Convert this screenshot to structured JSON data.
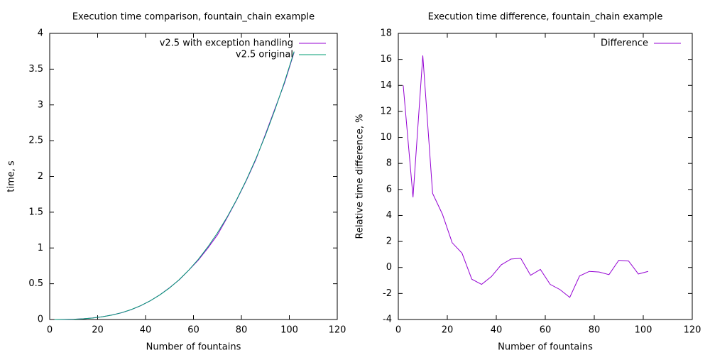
{
  "chart_data": [
    {
      "type": "line",
      "title": "Execution time comparison, fountain_chain example",
      "xlabel": "Number of fountains",
      "ylabel": "time, s",
      "x": [
        2,
        6,
        10,
        14,
        18,
        22,
        26,
        30,
        34,
        38,
        42,
        46,
        50,
        54,
        58,
        62,
        66,
        70,
        74,
        78,
        82,
        86,
        90,
        94,
        98,
        102
      ],
      "series": [
        {
          "name": "v2.5 with exception handling",
          "color": "#9400d3",
          "values": [
            0.0,
            0.001,
            0.004,
            0.01,
            0.022,
            0.038,
            0.063,
            0.094,
            0.137,
            0.193,
            0.262,
            0.346,
            0.444,
            0.553,
            0.688,
            0.83,
            0.998,
            1.183,
            1.421,
            1.67,
            1.939,
            2.233,
            2.587,
            2.947,
            3.305,
            3.735
          ]
        },
        {
          "name": "v2.5 original",
          "color": "#009e73",
          "values": [
            0.0,
            0.001,
            0.004,
            0.01,
            0.021,
            0.038,
            0.062,
            0.095,
            0.139,
            0.194,
            0.262,
            0.344,
            0.441,
            0.556,
            0.689,
            0.841,
            1.015,
            1.211,
            1.43,
            1.675,
            1.946,
            2.245,
            2.573,
            2.932,
            3.322,
            3.746
          ]
        }
      ],
      "xlim": [
        0,
        120
      ],
      "ylim": [
        0,
        4
      ],
      "xticks": [
        0,
        20,
        40,
        60,
        80,
        100,
        120
      ],
      "yticks": [
        0,
        0.5,
        1,
        1.5,
        2,
        2.5,
        3,
        3.5,
        4
      ],
      "legend": "top right",
      "grid": false
    },
    {
      "type": "line",
      "title": "Execution time difference, fountain_chain example",
      "xlabel": "Number of fountains",
      "ylabel": "Relative time difference, %",
      "x": [
        2,
        6,
        10,
        14,
        18,
        22,
        26,
        30,
        34,
        38,
        42,
        46,
        50,
        54,
        58,
        62,
        66,
        70,
        74,
        78,
        82,
        86,
        90,
        94,
        98,
        102
      ],
      "series": [
        {
          "name": "Difference",
          "color": "#9400d3",
          "values": [
            14.0,
            5.4,
            16.3,
            5.7,
            4.1,
            1.9,
            1.1,
            -0.9,
            -1.3,
            -0.7,
            0.2,
            0.65,
            0.7,
            -0.6,
            -0.15,
            -1.3,
            -1.7,
            -2.3,
            -0.65,
            -0.3,
            -0.35,
            -0.55,
            0.55,
            0.5,
            -0.5,
            -0.3
          ]
        }
      ],
      "xlim": [
        0,
        120
      ],
      "ylim": [
        -4,
        18
      ],
      "xticks": [
        0,
        20,
        40,
        60,
        80,
        100,
        120
      ],
      "yticks": [
        -4,
        -2,
        0,
        2,
        4,
        6,
        8,
        10,
        12,
        14,
        16,
        18
      ],
      "legend": "top right",
      "grid": false
    }
  ]
}
